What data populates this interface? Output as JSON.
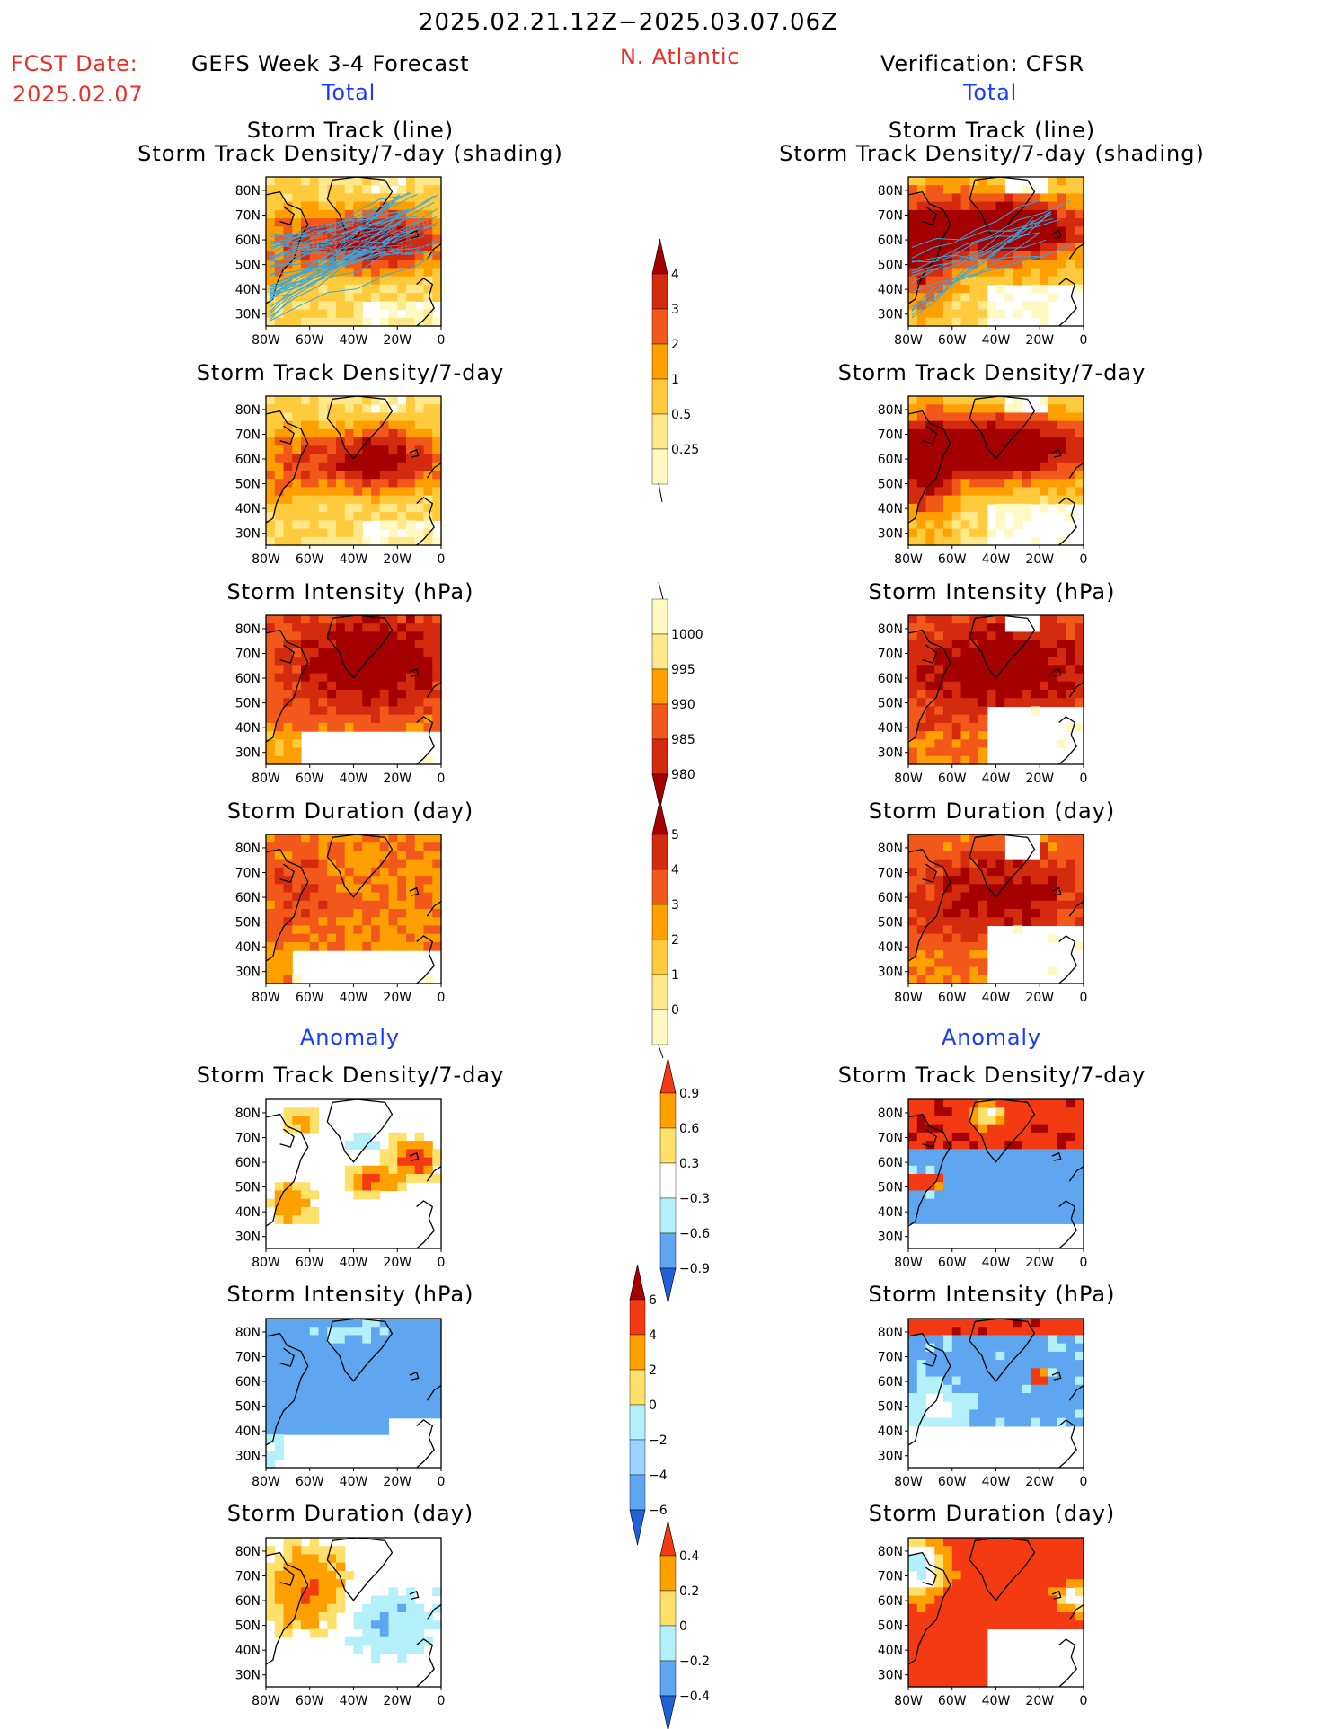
{
  "header": {
    "date_range": "2025.02.21.12Z−2025.03.07.06Z",
    "fcst_label": "FCST Date:",
    "fcst_date": "2025.02.07",
    "forecast_title": "GEFS Week 3-4 Forecast",
    "region": "N. Atlantic",
    "verification": "Verification: CFSR",
    "left_section_total": "Total",
    "right_section_total": "Total",
    "left_section_anomaly": "Anomaly",
    "right_section_anomaly": "Anomaly"
  },
  "panel_titles": {
    "track_line": "Storm Track (line)",
    "track_density_shading": "Storm Track Density/7-day (shading)",
    "track_density": "Storm Track Density/7-day",
    "intensity": "Storm Intensity (hPa)",
    "duration": "Storm Duration (day)"
  },
  "map_axes": {
    "lat_labels": [
      "80N",
      "70N",
      "60N",
      "50N",
      "40N",
      "30N"
    ],
    "lon_labels": [
      "80W",
      "60W",
      "40W",
      "20W",
      "0"
    ]
  },
  "colorbars": {
    "density": {
      "labels": [
        "4",
        "3",
        "2",
        "1",
        "0.5",
        "0.25"
      ],
      "colors": [
        "#a50000",
        "#d42a0e",
        "#f2581a",
        "#ffa000",
        "#ffcb3c",
        "#ffe88a",
        "#fff9c4"
      ]
    },
    "intensity": {
      "labels": [
        "1000",
        "995",
        "990",
        "985",
        "980"
      ],
      "colors": [
        "#fff9c4",
        "#ffe88a",
        "#ffa000",
        "#f2581a",
        "#d42a0e",
        "#a50000"
      ]
    },
    "duration": {
      "labels": [
        "5",
        "4",
        "3",
        "2",
        "1",
        "0"
      ],
      "colors": [
        "#a50000",
        "#d42a0e",
        "#f2581a",
        "#ffa000",
        "#ffcb3c",
        "#ffe88a",
        "#fff9c4"
      ]
    },
    "density_anom": {
      "labels": [
        "0.9",
        "0.6",
        "0.3",
        "−0.3",
        "−0.6",
        "−0.9"
      ],
      "colors": [
        "#f43a12",
        "#ffa000",
        "#ffe06a",
        "#ffffff",
        "#b4f0fa",
        "#5ea6f0",
        "#1e62d6"
      ]
    },
    "intensity_anom": {
      "labels": [
        "6",
        "4",
        "2",
        "0",
        "−2",
        "−4",
        "−6"
      ],
      "colors": [
        "#a50000",
        "#f43a12",
        "#ffa000",
        "#ffe06a",
        "#b4f0fa",
        "#9cd2ff",
        "#5ea6f0",
        "#1e62d6"
      ]
    },
    "duration_anom": {
      "labels": [
        "0.4",
        "0.2",
        "0",
        "−0.2",
        "−0.4"
      ],
      "colors": [
        "#f43a12",
        "#ffa000",
        "#ffe06a",
        "#b4f0fa",
        "#5ea6f0",
        "#1e62d6"
      ]
    }
  },
  "colors": {
    "title_red": "#e8302a",
    "section_blue": "#1a3aff",
    "track_line": "#35a8e0",
    "track_line_dense": "#c8282a"
  }
}
